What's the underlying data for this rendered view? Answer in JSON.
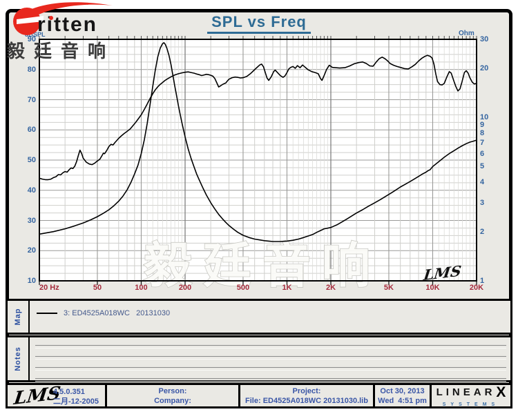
{
  "header": {
    "title": "SPL vs Freq",
    "brand_text": "ritten",
    "brand_cn": "毅廷音响"
  },
  "colors": {
    "background": "#eae9e4",
    "title_blue": "#2e6b94",
    "axis_blue": "#3565a0",
    "axis_red": "#a52a3c",
    "footer_blue": "#3a56a6",
    "brand_red": "#e8281e",
    "curve": "#000000",
    "grid_minor": "#cfcfcc",
    "grid_sub": "#dcdcd8",
    "grid_major": "#9a9a98"
  },
  "chart_data": {
    "type": "line",
    "title": "SPL vs Freq",
    "grid": true,
    "watermark": "毅廷音响",
    "plot_logo": "LMS",
    "x_axis": {
      "scale": "log",
      "min": 20,
      "max": 20000,
      "unit": "Hz",
      "tick_values": [
        20,
        50,
        100,
        200,
        500,
        1000,
        2000,
        5000,
        10000,
        20000
      ],
      "tick_labels": [
        "20 Hz",
        "50",
        "100",
        "200",
        "500",
        "1K",
        "2K",
        "5K",
        "10K",
        "20K"
      ]
    },
    "y_left": {
      "label": "dBSPL",
      "scale": "linear",
      "min": 10,
      "max": 90,
      "minor_step": 2.5,
      "ticks": [
        90,
        80,
        70,
        60,
        50,
        40,
        30,
        20,
        10
      ]
    },
    "y_right": {
      "label": "Ohm",
      "scale": "log",
      "min": 1,
      "max": 30,
      "ticks": [
        30,
        20,
        10,
        9,
        8,
        7,
        6,
        5,
        4,
        3,
        2,
        1
      ]
    },
    "series": [
      {
        "name": "3: ED4525A018WC 20131030 — SPL",
        "axis": "left",
        "color": "#000000",
        "width": 1.6,
        "points": [
          [
            20,
            44
          ],
          [
            21,
            43.7
          ],
          [
            22,
            43.5
          ],
          [
            23,
            43.5
          ],
          [
            24,
            43.7
          ],
          [
            25,
            44.2
          ],
          [
            26,
            44.5
          ],
          [
            27,
            45.2
          ],
          [
            28,
            45.1
          ],
          [
            29,
            45.8
          ],
          [
            30,
            46.2
          ],
          [
            31,
            46
          ],
          [
            32,
            46.8
          ],
          [
            33,
            47.4
          ],
          [
            34,
            47.2
          ],
          [
            35,
            48
          ],
          [
            36,
            49.5
          ],
          [
            37,
            51.5
          ],
          [
            38,
            53.3
          ],
          [
            39,
            52.2
          ],
          [
            40,
            50.6
          ],
          [
            42,
            49.3
          ],
          [
            44,
            48.7
          ],
          [
            46,
            48.5
          ],
          [
            48,
            49
          ],
          [
            50,
            49.7
          ],
          [
            52,
            50.3
          ],
          [
            54,
            51.6
          ],
          [
            55,
            52.3
          ],
          [
            56,
            52.1
          ],
          [
            58,
            53.2
          ],
          [
            60,
            54.5
          ],
          [
            62,
            55.2
          ],
          [
            64,
            55
          ],
          [
            66,
            55.8
          ],
          [
            68,
            56.5
          ],
          [
            70,
            57.2
          ],
          [
            73,
            58
          ],
          [
            76,
            58.7
          ],
          [
            80,
            59.5
          ],
          [
            84,
            60.3
          ],
          [
            88,
            61.5
          ],
          [
            92,
            62.6
          ],
          [
            96,
            63.8
          ],
          [
            100,
            65
          ],
          [
            105,
            66.8
          ],
          [
            110,
            68.6
          ],
          [
            115,
            70.4
          ],
          [
            120,
            72
          ],
          [
            125,
            73.3
          ],
          [
            130,
            74.3
          ],
          [
            135,
            75.1
          ],
          [
            140,
            75.7
          ],
          [
            145,
            76.3
          ],
          [
            150,
            76.8
          ],
          [
            160,
            77.6
          ],
          [
            170,
            78.2
          ],
          [
            180,
            78.6
          ],
          [
            190,
            78.9
          ],
          [
            200,
            79.1
          ],
          [
            210,
            79.2
          ],
          [
            220,
            79
          ],
          [
            230,
            78.8
          ],
          [
            240,
            78.5
          ],
          [
            250,
            78.3
          ],
          [
            260,
            78
          ],
          [
            270,
            78.2
          ],
          [
            280,
            78.4
          ],
          [
            290,
            78.3
          ],
          [
            300,
            78.1
          ],
          [
            310,
            77.8
          ],
          [
            320,
            77
          ],
          [
            330,
            75.6
          ],
          [
            340,
            74.2
          ],
          [
            350,
            74.6
          ],
          [
            360,
            75
          ],
          [
            370,
            75.3
          ],
          [
            380,
            75.5
          ],
          [
            390,
            76.2
          ],
          [
            400,
            76.8
          ],
          [
            420,
            77.3
          ],
          [
            440,
            77.5
          ],
          [
            460,
            77.4
          ],
          [
            480,
            77.2
          ],
          [
            500,
            77.3
          ],
          [
            530,
            77.7
          ],
          [
            560,
            78.6
          ],
          [
            590,
            79.6
          ],
          [
            620,
            80.6
          ],
          [
            650,
            81.5
          ],
          [
            670,
            81.8
          ],
          [
            690,
            80.9
          ],
          [
            710,
            79
          ],
          [
            730,
            77.2
          ],
          [
            750,
            76.4
          ],
          [
            780,
            77.6
          ],
          [
            810,
            79.3
          ],
          [
            830,
            79.8
          ],
          [
            860,
            79
          ],
          [
            900,
            78
          ],
          [
            940,
            77.4
          ],
          [
            970,
            77.9
          ],
          [
            1000,
            79
          ],
          [
            1030,
            80.2
          ],
          [
            1060,
            80.7
          ],
          [
            1100,
            81
          ],
          [
            1140,
            80.4
          ],
          [
            1180,
            81.3
          ],
          [
            1230,
            80.6
          ],
          [
            1280,
            81.5
          ],
          [
            1330,
            80.8
          ],
          [
            1400,
            79.9
          ],
          [
            1480,
            79.3
          ],
          [
            1560,
            79
          ],
          [
            1640,
            78.6
          ],
          [
            1700,
            77
          ],
          [
            1740,
            76.4
          ],
          [
            1800,
            78
          ],
          [
            1870,
            80
          ],
          [
            1950,
            81.4
          ],
          [
            2050,
            80.7
          ],
          [
            2150,
            80.6
          ],
          [
            2300,
            80.5
          ],
          [
            2500,
            80.6
          ],
          [
            2700,
            81.2
          ],
          [
            2900,
            81.9
          ],
          [
            3100,
            82.3
          ],
          [
            3300,
            82.5
          ],
          [
            3500,
            82
          ],
          [
            3700,
            81.2
          ],
          [
            3900,
            81.1
          ],
          [
            4100,
            82.5
          ],
          [
            4300,
            83.6
          ],
          [
            4500,
            84.1
          ],
          [
            4700,
            83.6
          ],
          [
            4900,
            82.9
          ],
          [
            5100,
            82
          ],
          [
            5400,
            81.4
          ],
          [
            5700,
            81
          ],
          [
            6000,
            80.7
          ],
          [
            6400,
            80.3
          ],
          [
            6800,
            80.2
          ],
          [
            7200,
            80.9
          ],
          [
            7600,
            81.7
          ],
          [
            8000,
            82.8
          ],
          [
            8400,
            83.7
          ],
          [
            8800,
            84.3
          ],
          [
            9200,
            84.7
          ],
          [
            9600,
            84.4
          ],
          [
            9900,
            83.8
          ],
          [
            10200,
            81.8
          ],
          [
            10500,
            78.5
          ],
          [
            10800,
            76
          ],
          [
            11200,
            75
          ],
          [
            11600,
            74.9
          ],
          [
            12000,
            75.4
          ],
          [
            12500,
            77.5
          ],
          [
            13000,
            79.3
          ],
          [
            13400,
            78.8
          ],
          [
            13900,
            76.5
          ],
          [
            14400,
            74.4
          ],
          [
            14900,
            72.9
          ],
          [
            15400,
            73.6
          ],
          [
            15900,
            76
          ],
          [
            16500,
            79
          ],
          [
            17000,
            79.6
          ],
          [
            17500,
            78.8
          ],
          [
            18000,
            77.3
          ],
          [
            18700,
            75.8
          ],
          [
            19300,
            75.2
          ],
          [
            20000,
            75.4
          ]
        ]
      },
      {
        "name": "3: ED4525A018WC 20131030 — Impedance",
        "axis": "right",
        "color": "#000000",
        "width": 1.6,
        "points": [
          [
            20,
            1.93
          ],
          [
            25,
            2.0
          ],
          [
            30,
            2.08
          ],
          [
            35,
            2.17
          ],
          [
            40,
            2.26
          ],
          [
            45,
            2.36
          ],
          [
            50,
            2.47
          ],
          [
            55,
            2.59
          ],
          [
            60,
            2.72
          ],
          [
            65,
            2.88
          ],
          [
            70,
            3.07
          ],
          [
            75,
            3.3
          ],
          [
            80,
            3.6
          ],
          [
            85,
            4.0
          ],
          [
            90,
            4.5
          ],
          [
            95,
            5.1
          ],
          [
            100,
            6.0
          ],
          [
            105,
            7.3
          ],
          [
            110,
            9.2
          ],
          [
            115,
            12
          ],
          [
            120,
            15.5
          ],
          [
            125,
            19.5
          ],
          [
            130,
            23.5
          ],
          [
            135,
            26.5
          ],
          [
            140,
            28.2
          ],
          [
            143,
            28.6
          ],
          [
            146,
            28
          ],
          [
            150,
            26.5
          ],
          [
            155,
            24
          ],
          [
            160,
            21
          ],
          [
            165,
            18
          ],
          [
            170,
            15.5
          ],
          [
            175,
            13.5
          ],
          [
            180,
            11.8
          ],
          [
            185,
            10.4
          ],
          [
            190,
            9.3
          ],
          [
            200,
            7.6
          ],
          [
            210,
            6.4
          ],
          [
            220,
            5.6
          ],
          [
            230,
            5.0
          ],
          [
            240,
            4.5
          ],
          [
            250,
            4.15
          ],
          [
            265,
            3.7
          ],
          [
            280,
            3.35
          ],
          [
            300,
            3.0
          ],
          [
            320,
            2.75
          ],
          [
            340,
            2.55
          ],
          [
            360,
            2.4
          ],
          [
            380,
            2.28
          ],
          [
            400,
            2.18
          ],
          [
            430,
            2.07
          ],
          [
            460,
            1.98
          ],
          [
            500,
            1.9
          ],
          [
            550,
            1.84
          ],
          [
            600,
            1.8
          ],
          [
            650,
            1.78
          ],
          [
            700,
            1.76
          ],
          [
            750,
            1.75
          ],
          [
            800,
            1.74
          ],
          [
            900,
            1.74
          ],
          [
            1000,
            1.75
          ],
          [
            1100,
            1.77
          ],
          [
            1200,
            1.8
          ],
          [
            1300,
            1.84
          ],
          [
            1400,
            1.88
          ],
          [
            1500,
            1.92
          ],
          [
            1600,
            1.98
          ],
          [
            1700,
            2.03
          ],
          [
            1800,
            2.08
          ],
          [
            1900,
            2.1
          ],
          [
            2000,
            2.12
          ],
          [
            2200,
            2.2
          ],
          [
            2400,
            2.3
          ],
          [
            2600,
            2.4
          ],
          [
            2800,
            2.5
          ],
          [
            3000,
            2.6
          ],
          [
            3300,
            2.72
          ],
          [
            3600,
            2.85
          ],
          [
            4000,
            3.0
          ],
          [
            4400,
            3.15
          ],
          [
            4800,
            3.3
          ],
          [
            5200,
            3.45
          ],
          [
            5600,
            3.6
          ],
          [
            6000,
            3.75
          ],
          [
            6500,
            3.9
          ],
          [
            7000,
            4.05
          ],
          [
            7500,
            4.2
          ],
          [
            8000,
            4.35
          ],
          [
            8500,
            4.5
          ],
          [
            9000,
            4.62
          ],
          [
            9300,
            4.72
          ],
          [
            9600,
            4.78
          ],
          [
            10000,
            5.0
          ],
          [
            11000,
            5.35
          ],
          [
            12000,
            5.7
          ],
          [
            13000,
            6.0
          ],
          [
            14000,
            6.25
          ],
          [
            15000,
            6.5
          ],
          [
            16000,
            6.72
          ],
          [
            17000,
            6.9
          ],
          [
            18000,
            7.05
          ],
          [
            19000,
            7.15
          ],
          [
            20000,
            7.25
          ]
        ]
      }
    ]
  },
  "map_section": {
    "label": "Map",
    "legend_text": "3: ED4525A018WC   20131030"
  },
  "notes_section": {
    "label": "Notes",
    "line_count": 4
  },
  "footer": {
    "lms_logo": "LMS",
    "version": "4.5.0.351",
    "version_date": "二月-12-2005",
    "person": "Person:",
    "company": "Company:",
    "project": "Project:",
    "file": "File: ED4525A018WC 20131030.lib",
    "date": "Oct 30, 2013",
    "time": "Wed  4:51 pm",
    "brand_line1": "LINEAR",
    "brand_x": "X",
    "brand_line2": "SYSTEMS"
  }
}
